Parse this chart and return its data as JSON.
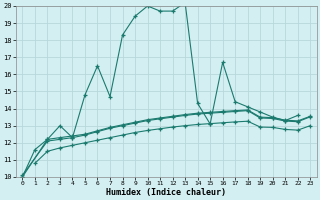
{
  "xlabel": "Humidex (Indice chaleur)",
  "bg_color": "#d4eff2",
  "line_color": "#1a7a6e",
  "grid_color": "#b8d8dc",
  "xlim": [
    -0.5,
    23.5
  ],
  "ylim": [
    10,
    20
  ],
  "yticks": [
    10,
    11,
    12,
    13,
    14,
    15,
    16,
    17,
    18,
    19,
    20
  ],
  "xticks": [
    0,
    1,
    2,
    3,
    4,
    5,
    6,
    7,
    8,
    9,
    10,
    11,
    12,
    13,
    14,
    15,
    16,
    17,
    18,
    19,
    20,
    21,
    22,
    23
  ],
  "series": [
    {
      "x": [
        0,
        1,
        2,
        3,
        4,
        5,
        6,
        7,
        8,
        9,
        10,
        11,
        12,
        13,
        14,
        15,
        16,
        17,
        18,
        19,
        20,
        21,
        22
      ],
      "y": [
        10.0,
        11.6,
        12.2,
        13.0,
        12.3,
        14.8,
        16.5,
        14.7,
        18.3,
        19.4,
        20.0,
        19.7,
        19.7,
        20.2,
        14.3,
        13.1,
        16.7,
        14.4,
        14.1,
        13.8,
        13.5,
        13.3,
        13.6
      ]
    },
    {
      "x": [
        0,
        2,
        3,
        4,
        5,
        6,
        7,
        8,
        9,
        10,
        11,
        12,
        13,
        14,
        15,
        16,
        17,
        18,
        19,
        20,
        21,
        22,
        23
      ],
      "y": [
        10.0,
        12.2,
        12.3,
        12.4,
        12.5,
        12.7,
        12.9,
        13.05,
        13.2,
        13.35,
        13.45,
        13.55,
        13.65,
        13.73,
        13.78,
        13.83,
        13.88,
        13.92,
        13.5,
        13.47,
        13.32,
        13.28,
        13.55
      ]
    },
    {
      "x": [
        0,
        2,
        3,
        4,
        5,
        6,
        7,
        8,
        9,
        10,
        11,
        12,
        13,
        14,
        15,
        16,
        17,
        18,
        19,
        20,
        21,
        22,
        23
      ],
      "y": [
        10.1,
        12.1,
        12.2,
        12.3,
        12.45,
        12.65,
        12.85,
        13.0,
        13.15,
        13.3,
        13.4,
        13.5,
        13.6,
        13.68,
        13.73,
        13.78,
        13.83,
        13.88,
        13.45,
        13.42,
        13.27,
        13.23,
        13.52
      ]
    },
    {
      "x": [
        1,
        2,
        3,
        4,
        5,
        6,
        7,
        8,
        9,
        10,
        11,
        12,
        13,
        14,
        15,
        16,
        17,
        18,
        19,
        20,
        21,
        22,
        23
      ],
      "y": [
        10.8,
        11.5,
        11.7,
        11.85,
        12.0,
        12.15,
        12.3,
        12.45,
        12.6,
        12.72,
        12.82,
        12.92,
        13.0,
        13.07,
        13.12,
        13.17,
        13.22,
        13.26,
        12.92,
        12.9,
        12.78,
        12.74,
        13.0
      ]
    }
  ]
}
